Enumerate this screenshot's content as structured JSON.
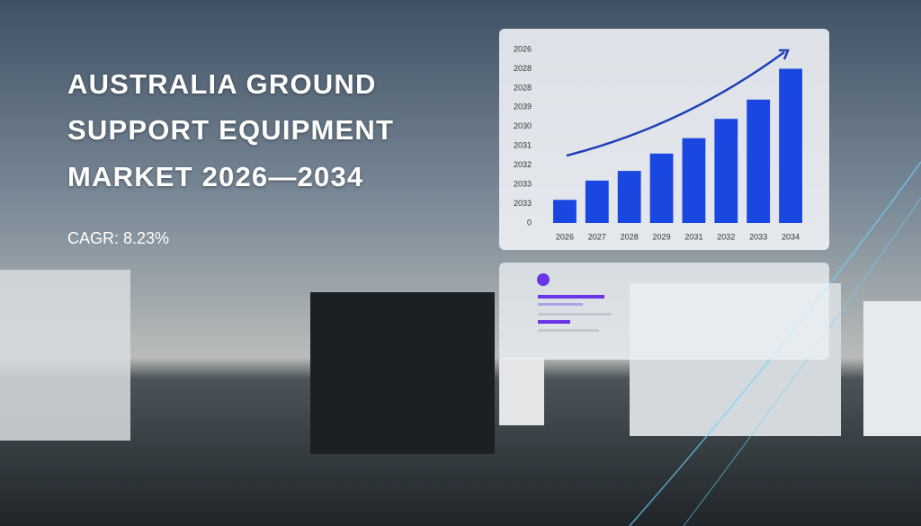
{
  "header": {
    "title": [
      "AUSTRALIA GROUND",
      "SUPPORT EQUIPMENT",
      "MARKET 2026—2034"
    ],
    "cagr": "CAGR: 8.23%"
  },
  "chart_data": {
    "type": "bar",
    "categories": [
      "2026",
      "2027",
      "2028",
      "2029",
      "2031",
      "2032",
      "2033",
      "2034"
    ],
    "values": [
      1.2,
      2.2,
      2.7,
      3.6,
      4.4,
      5.4,
      6.4,
      8.0
    ],
    "color": "#1a47e0",
    "ylim": [
      0,
      9
    ],
    "yticks": [
      0,
      {
        "value": 1,
        "label": "2033"
      },
      {
        "value": 2,
        "label": "2033"
      },
      {
        "value": 3,
        "label": "2032"
      },
      {
        "value": 4,
        "label": "2031"
      },
      {
        "value": 5,
        "label": "2030"
      },
      {
        "value": 6,
        "label": "2039"
      },
      {
        "value": 7,
        "label": "2028"
      },
      {
        "value": 8,
        "label": "2028"
      },
      {
        "value": 9,
        "label": "2026"
      }
    ]
  }
}
